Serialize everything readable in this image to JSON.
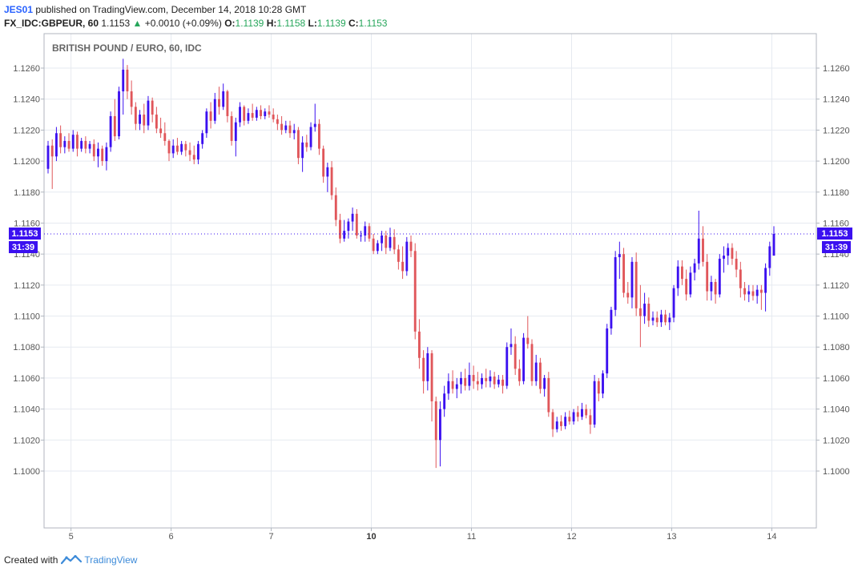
{
  "header": {
    "user": "JES01",
    "published": "published on TradingView.com, December 14, 2018 10:28 GMT",
    "symbol": "FX_IDC:GBPEUR, 60",
    "price": "1.1153",
    "change": "+0.0010 (+0.09%)",
    "open_label": "O:",
    "open": "1.1139",
    "high_label": "H:",
    "high": "1.1158",
    "low_label": "L:",
    "low": "1.1139",
    "close_label": "C:",
    "close": "1.1153"
  },
  "footer": {
    "created": "Created with",
    "brand": "TradingView"
  },
  "colors": {
    "up": "#3b10f0",
    "down": "#e0565a",
    "grid": "#e6eaf0",
    "axis": "#555555"
  },
  "chart_data": {
    "type": "candlestick",
    "title": "BRITISH POUND / EURO, 60, IDC",
    "ylim": [
      1.099,
      1.1275
    ],
    "y_ticks": [
      "1.1000",
      "1.1020",
      "1.1040",
      "1.1060",
      "1.1080",
      "1.1100",
      "1.1120",
      "1.1140",
      "1.1160",
      "1.1180",
      "1.1200",
      "1.1220",
      "1.1240",
      "1.1260"
    ],
    "x_ticks": [
      {
        "label": "5",
        "index": 5.5,
        "bold": false
      },
      {
        "label": "6",
        "index": 29.5,
        "bold": false
      },
      {
        "label": "7",
        "index": 53.5,
        "bold": false
      },
      {
        "label": "10",
        "index": 77.5,
        "bold": true
      },
      {
        "label": "11",
        "index": 101.5,
        "bold": false
      },
      {
        "label": "12",
        "index": 125.5,
        "bold": false
      },
      {
        "label": "13",
        "index": 149.5,
        "bold": false
      },
      {
        "label": "14",
        "index": 173.5,
        "bold": false
      }
    ],
    "last_price_label": "1.1153",
    "countdown_label": "31:39",
    "last_price": 1.1153,
    "grid": true,
    "ohlc": [
      [
        1.1195,
        1.1213,
        1.1192,
        1.121
      ],
      [
        1.121,
        1.1214,
        1.1182,
        1.1203
      ],
      [
        1.1203,
        1.1222,
        1.12,
        1.1218
      ],
      [
        1.1218,
        1.1223,
        1.1205,
        1.1209
      ],
      [
        1.1209,
        1.1216,
        1.1205,
        1.1213
      ],
      [
        1.1213,
        1.1218,
        1.1206,
        1.1208
      ],
      [
        1.1208,
        1.122,
        1.1206,
        1.1217
      ],
      [
        1.1217,
        1.1219,
        1.1203,
        1.1208
      ],
      [
        1.1208,
        1.1215,
        1.1206,
        1.1213
      ],
      [
        1.1213,
        1.1216,
        1.1205,
        1.1208
      ],
      [
        1.1208,
        1.1213,
        1.1205,
        1.1211
      ],
      [
        1.1211,
        1.1214,
        1.12,
        1.1203
      ],
      [
        1.1203,
        1.1212,
        1.1196,
        1.1208
      ],
      [
        1.1208,
        1.121,
        1.1197,
        1.12
      ],
      [
        1.12,
        1.1212,
        1.1194,
        1.1209
      ],
      [
        1.1209,
        1.1232,
        1.1206,
        1.1229
      ],
      [
        1.1229,
        1.124,
        1.1213,
        1.1216
      ],
      [
        1.1216,
        1.1248,
        1.1214,
        1.1245
      ],
      [
        1.1245,
        1.1266,
        1.123,
        1.1259
      ],
      [
        1.1259,
        1.1262,
        1.124,
        1.1245
      ],
      [
        1.1245,
        1.1252,
        1.123,
        1.1235
      ],
      [
        1.1235,
        1.1238,
        1.122,
        1.1224
      ],
      [
        1.1224,
        1.1233,
        1.122,
        1.123
      ],
      [
        1.123,
        1.1237,
        1.1218,
        1.1223
      ],
      [
        1.1223,
        1.1242,
        1.122,
        1.1239
      ],
      [
        1.1239,
        1.1241,
        1.1225,
        1.123
      ],
      [
        1.123,
        1.1235,
        1.1218,
        1.1221
      ],
      [
        1.1221,
        1.1228,
        1.1215,
        1.1218
      ],
      [
        1.1218,
        1.1225,
        1.121,
        1.1213
      ],
      [
        1.1213,
        1.1214,
        1.12,
        1.1205
      ],
      [
        1.1205,
        1.1214,
        1.1202,
        1.121
      ],
      [
        1.121,
        1.1215,
        1.1204,
        1.1206
      ],
      [
        1.1206,
        1.1213,
        1.1204,
        1.1211
      ],
      [
        1.1211,
        1.1213,
        1.1203,
        1.1207
      ],
      [
        1.1207,
        1.1212,
        1.12,
        1.1204
      ],
      [
        1.1204,
        1.121,
        1.1198,
        1.1201
      ],
      [
        1.1201,
        1.1213,
        1.1198,
        1.1211
      ],
      [
        1.1211,
        1.122,
        1.1208,
        1.1218
      ],
      [
        1.1218,
        1.1234,
        1.1215,
        1.1232
      ],
      [
        1.1232,
        1.1238,
        1.1221,
        1.1226
      ],
      [
        1.1226,
        1.1244,
        1.1224,
        1.124
      ],
      [
        1.124,
        1.1248,
        1.123,
        1.1235
      ],
      [
        1.1235,
        1.125,
        1.1233,
        1.1245
      ],
      [
        1.1245,
        1.1246,
        1.1225,
        1.1229
      ],
      [
        1.1229,
        1.1232,
        1.121,
        1.1213
      ],
      [
        1.1213,
        1.1228,
        1.1203,
        1.1225
      ],
      [
        1.1225,
        1.1238,
        1.1222,
        1.1235
      ],
      [
        1.1235,
        1.1236,
        1.1223,
        1.1226
      ],
      [
        1.1226,
        1.1234,
        1.1224,
        1.1231
      ],
      [
        1.1231,
        1.1237,
        1.1226,
        1.1228
      ],
      [
        1.1228,
        1.1235,
        1.1226,
        1.1233
      ],
      [
        1.1233,
        1.1236,
        1.1227,
        1.1229
      ],
      [
        1.1229,
        1.1234,
        1.1227,
        1.1232
      ],
      [
        1.1232,
        1.1236,
        1.1228,
        1.123
      ],
      [
        1.123,
        1.1234,
        1.1225,
        1.1227
      ],
      [
        1.1227,
        1.123,
        1.122,
        1.1224
      ],
      [
        1.1224,
        1.1229,
        1.1217,
        1.122
      ],
      [
        1.122,
        1.1226,
        1.1218,
        1.1223
      ],
      [
        1.1223,
        1.1226,
        1.1215,
        1.1218
      ],
      [
        1.1218,
        1.1224,
        1.1214,
        1.122
      ],
      [
        1.122,
        1.1222,
        1.1198,
        1.1202
      ],
      [
        1.1202,
        1.1216,
        1.1193,
        1.1212
      ],
      [
        1.1212,
        1.1217,
        1.1206,
        1.1209
      ],
      [
        1.1209,
        1.1225,
        1.1207,
        1.1222
      ],
      [
        1.1222,
        1.1237,
        1.1219,
        1.1224
      ],
      [
        1.1224,
        1.1227,
        1.1204,
        1.1208
      ],
      [
        1.1208,
        1.121,
        1.1186,
        1.119
      ],
      [
        1.119,
        1.1199,
        1.118,
        1.1196
      ],
      [
        1.1196,
        1.12,
        1.1175,
        1.1178
      ],
      [
        1.1178,
        1.1183,
        1.1158,
        1.1162
      ],
      [
        1.1162,
        1.1166,
        1.1147,
        1.115
      ],
      [
        1.115,
        1.1162,
        1.1148,
        1.1155
      ],
      [
        1.1155,
        1.1163,
        1.115,
        1.1161
      ],
      [
        1.1161,
        1.117,
        1.1155,
        1.1166
      ],
      [
        1.1166,
        1.1169,
        1.115,
        1.1152
      ],
      [
        1.1152,
        1.1155,
        1.1148,
        1.1152
      ],
      [
        1.1152,
        1.1161,
        1.1148,
        1.1158
      ],
      [
        1.1158,
        1.116,
        1.1148,
        1.115
      ],
      [
        1.115,
        1.1153,
        1.114,
        1.1142
      ],
      [
        1.1142,
        1.1149,
        1.114,
        1.1147
      ],
      [
        1.1147,
        1.1155,
        1.1142,
        1.1152
      ],
      [
        1.1152,
        1.1155,
        1.114,
        1.1144
      ],
      [
        1.1144,
        1.1157,
        1.1142,
        1.1151
      ],
      [
        1.1151,
        1.1156,
        1.114,
        1.1143
      ],
      [
        1.1143,
        1.1146,
        1.113,
        1.1135
      ],
      [
        1.1135,
        1.1145,
        1.1124,
        1.1129
      ],
      [
        1.1129,
        1.1151,
        1.1126,
        1.1148
      ],
      [
        1.1148,
        1.1152,
        1.1138,
        1.1142
      ],
      [
        1.1142,
        1.1147,
        1.1085,
        1.109
      ],
      [
        1.109,
        1.1098,
        1.1066,
        1.1073
      ],
      [
        1.1073,
        1.1078,
        1.105,
        1.1058
      ],
      [
        1.1058,
        1.108,
        1.1052,
        1.1076
      ],
      [
        1.1076,
        1.1078,
        1.1032,
        1.1045
      ],
      [
        1.1045,
        1.1048,
        1.1002,
        1.102
      ],
      [
        1.102,
        1.1045,
        1.1003,
        1.104
      ],
      [
        1.104,
        1.1055,
        1.1035,
        1.105
      ],
      [
        1.105,
        1.1063,
        1.1046,
        1.1058
      ],
      [
        1.1058,
        1.1065,
        1.105,
        1.1053
      ],
      [
        1.1053,
        1.106,
        1.1047,
        1.1056
      ],
      [
        1.1056,
        1.1064,
        1.105,
        1.106
      ],
      [
        1.106,
        1.1066,
        1.1052,
        1.1055
      ],
      [
        1.1055,
        1.107,
        1.1052,
        1.1062
      ],
      [
        1.1062,
        1.1068,
        1.1053,
        1.1058
      ],
      [
        1.1058,
        1.1064,
        1.1052,
        1.1056
      ],
      [
        1.1056,
        1.1063,
        1.1053,
        1.106
      ],
      [
        1.106,
        1.1066,
        1.1054,
        1.1058
      ],
      [
        1.1058,
        1.1065,
        1.1054,
        1.1061
      ],
      [
        1.1061,
        1.1064,
        1.1053,
        1.1056
      ],
      [
        1.1056,
        1.1062,
        1.1054,
        1.1059
      ],
      [
        1.1059,
        1.1062,
        1.105,
        1.1055
      ],
      [
        1.1055,
        1.1083,
        1.1053,
        1.108
      ],
      [
        1.108,
        1.1092,
        1.1075,
        1.1082
      ],
      [
        1.1082,
        1.1087,
        1.1062,
        1.1066
      ],
      [
        1.1066,
        1.1072,
        1.1055,
        1.1058
      ],
      [
        1.1058,
        1.1089,
        1.1056,
        1.1086
      ],
      [
        1.1086,
        1.11,
        1.1079,
        1.1082
      ],
      [
        1.1082,
        1.1085,
        1.1055,
        1.1058
      ],
      [
        1.1058,
        1.1075,
        1.1055,
        1.107
      ],
      [
        1.107,
        1.1073,
        1.105,
        1.1053
      ],
      [
        1.1053,
        1.1062,
        1.1048,
        1.106
      ],
      [
        1.106,
        1.1064,
        1.1035,
        1.1038
      ],
      [
        1.1038,
        1.104,
        1.1022,
        1.1027
      ],
      [
        1.1027,
        1.1035,
        1.1025,
        1.1032
      ],
      [
        1.1032,
        1.1036,
        1.1026,
        1.1029
      ],
      [
        1.1029,
        1.1038,
        1.1027,
        1.1035
      ],
      [
        1.1035,
        1.1039,
        1.103,
        1.1032
      ],
      [
        1.1032,
        1.104,
        1.103,
        1.1038
      ],
      [
        1.1038,
        1.1042,
        1.1032,
        1.1035
      ],
      [
        1.1035,
        1.1044,
        1.1033,
        1.104
      ],
      [
        1.104,
        1.1043,
        1.1034,
        1.1036
      ],
      [
        1.1036,
        1.104,
        1.1024,
        1.103
      ],
      [
        1.103,
        1.1062,
        1.1028,
        1.1058
      ],
      [
        1.1058,
        1.106,
        1.1045,
        1.105
      ],
      [
        1.105,
        1.1065,
        1.1047,
        1.1063
      ],
      [
        1.1063,
        1.1095,
        1.106,
        1.1092
      ],
      [
        1.1092,
        1.1106,
        1.1088,
        1.1104
      ],
      [
        1.1104,
        1.1142,
        1.11,
        1.1138
      ],
      [
        1.1138,
        1.1148,
        1.1124,
        1.114
      ],
      [
        1.114,
        1.1144,
        1.1112,
        1.1115
      ],
      [
        1.1115,
        1.1122,
        1.1108,
        1.1112
      ],
      [
        1.1112,
        1.1138,
        1.1105,
        1.1135
      ],
      [
        1.1135,
        1.1141,
        1.11,
        1.1105
      ],
      [
        1.1105,
        1.112,
        1.108,
        1.11
      ],
      [
        1.11,
        1.1115,
        1.1095,
        1.1108
      ],
      [
        1.1108,
        1.1112,
        1.1093,
        1.1097
      ],
      [
        1.1097,
        1.1103,
        1.1094,
        1.1099
      ],
      [
        1.1099,
        1.1103,
        1.1093,
        1.1096
      ],
      [
        1.1096,
        1.1104,
        1.1093,
        1.1101
      ],
      [
        1.1101,
        1.1104,
        1.1094,
        1.1096
      ],
      [
        1.1096,
        1.1102,
        1.1091,
        1.1099
      ],
      [
        1.1099,
        1.112,
        1.1096,
        1.1118
      ],
      [
        1.1118,
        1.1136,
        1.1113,
        1.1132
      ],
      [
        1.1132,
        1.1136,
        1.112,
        1.1124
      ],
      [
        1.1124,
        1.113,
        1.111,
        1.1114
      ],
      [
        1.1114,
        1.1132,
        1.1112,
        1.1128
      ],
      [
        1.1128,
        1.1137,
        1.1123,
        1.1134
      ],
      [
        1.1134,
        1.1168,
        1.113,
        1.115
      ],
      [
        1.115,
        1.1158,
        1.1132,
        1.1135
      ],
      [
        1.1135,
        1.114,
        1.111,
        1.1116
      ],
      [
        1.1116,
        1.1126,
        1.111,
        1.1122
      ],
      [
        1.1122,
        1.1124,
        1.1108,
        1.1114
      ],
      [
        1.1114,
        1.114,
        1.1112,
        1.1137
      ],
      [
        1.1137,
        1.1145,
        1.1128,
        1.1139
      ],
      [
        1.1139,
        1.1147,
        1.1133,
        1.1144
      ],
      [
        1.1144,
        1.1147,
        1.1133,
        1.1137
      ],
      [
        1.1137,
        1.1142,
        1.1125,
        1.113
      ],
      [
        1.113,
        1.1135,
        1.1112,
        1.1118
      ],
      [
        1.1118,
        1.1122,
        1.111,
        1.1114
      ],
      [
        1.1114,
        1.112,
        1.1109,
        1.1116
      ],
      [
        1.1116,
        1.112,
        1.111,
        1.1113
      ],
      [
        1.1113,
        1.112,
        1.1108,
        1.1117
      ],
      [
        1.1117,
        1.112,
        1.1104,
        1.1115
      ],
      [
        1.1115,
        1.1134,
        1.1103,
        1.1131
      ],
      [
        1.1131,
        1.1148,
        1.1126,
        1.1145
      ],
      [
        1.1139,
        1.1158,
        1.1139,
        1.1153
      ]
    ]
  }
}
